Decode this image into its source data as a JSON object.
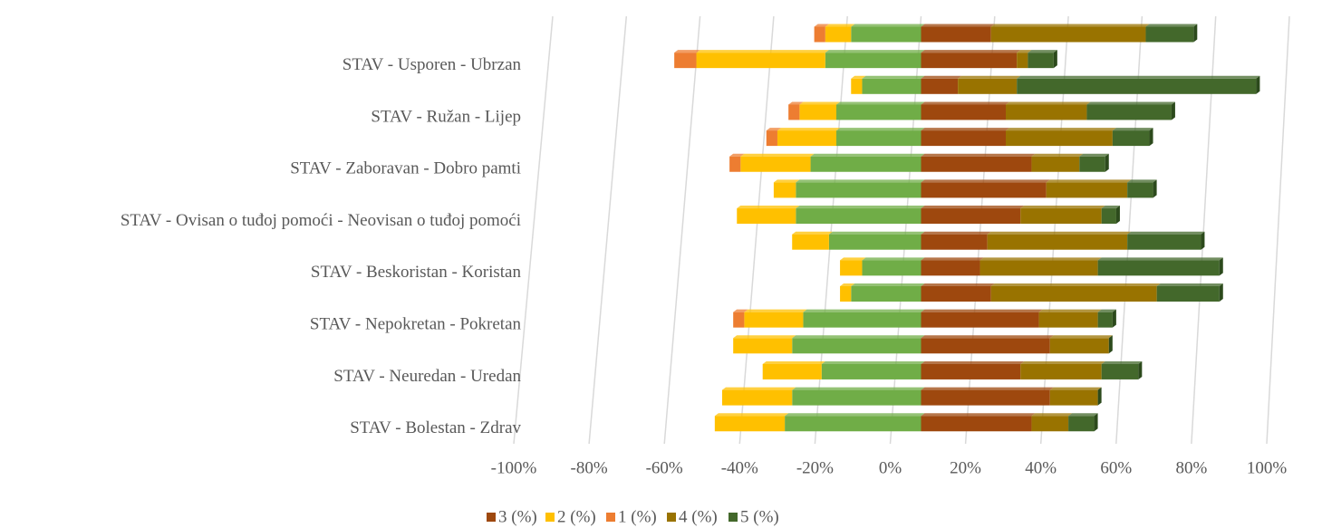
{
  "chart_data": {
    "type": "diverging-stacked-barh",
    "categories": [
      null,
      "STAV - Usporen - Ubrzan",
      null,
      "STAV - Ružan - Lijep",
      null,
      "STAV - Zaboravan - Dobro pamti",
      null,
      "STAV - Ovisan o tuđoj pomoći - Neovisan o tuđoj pomoći",
      null,
      "STAV - Beskoristan - Koristan",
      null,
      "STAV - Nepokretan - Pokretan",
      null,
      "STAV - Neuredan - Uredan",
      null,
      "STAV - Bolestan - Zdrav"
    ],
    "series": [
      {
        "name": "3 (%)",
        "color": "#9e480e",
        "values": [
          19,
          26,
          10,
          23,
          23,
          30,
          34,
          27,
          18,
          16,
          19,
          32,
          35,
          27,
          35,
          30
        ]
      },
      {
        "name": "2 (%)",
        "color": "#ffc000",
        "values": [
          -7,
          -35,
          -3,
          -10,
          -16,
          -19,
          -6,
          -16,
          -10,
          -6,
          -3,
          -16,
          -16,
          -16,
          -19,
          -19
        ]
      },
      {
        "name": "1 (%)",
        "color": "#ed7d31",
        "values": [
          -3,
          -6,
          0,
          -3,
          -3,
          -3,
          0,
          0,
          0,
          0,
          0,
          -3,
          0,
          0,
          0,
          0
        ]
      },
      {
        "name": "4 (%)",
        "color": "#997300",
        "values": [
          42,
          3,
          16,
          22,
          29,
          13,
          22,
          22,
          38,
          32,
          45,
          16,
          16,
          22,
          13,
          10
        ]
      },
      {
        "name": "5 (%)",
        "color": "#43682b",
        "values": [
          13,
          7,
          65,
          23,
          10,
          7,
          7,
          4,
          20,
          33,
          17,
          4,
          0,
          10,
          0,
          7
        ]
      },
      {
        "color": "#70ad47",
        "values": [
          -19,
          -26,
          -16,
          -23,
          -23,
          -30,
          -34,
          -34,
          -25,
          -16,
          -19,
          -32,
          -35,
          -27,
          -35,
          -37
        ]
      }
    ],
    "xlim": [
      -100,
      100
    ],
    "xticks": [
      {
        "value": -100,
        "label": "-100%"
      },
      {
        "value": -80,
        "label": "-80%"
      },
      {
        "value": -60,
        "label": "-60%"
      },
      {
        "value": -40,
        "label": "-40%"
      },
      {
        "value": -20,
        "label": "-20%"
      },
      {
        "value": 0,
        "label": "0%"
      },
      {
        "value": 20,
        "label": "20%"
      },
      {
        "value": 40,
        "label": "40%"
      },
      {
        "value": 60,
        "label": "60%"
      },
      {
        "value": 80,
        "label": "80%"
      },
      {
        "value": 100,
        "label": "100%"
      }
    ],
    "grid": true
  }
}
